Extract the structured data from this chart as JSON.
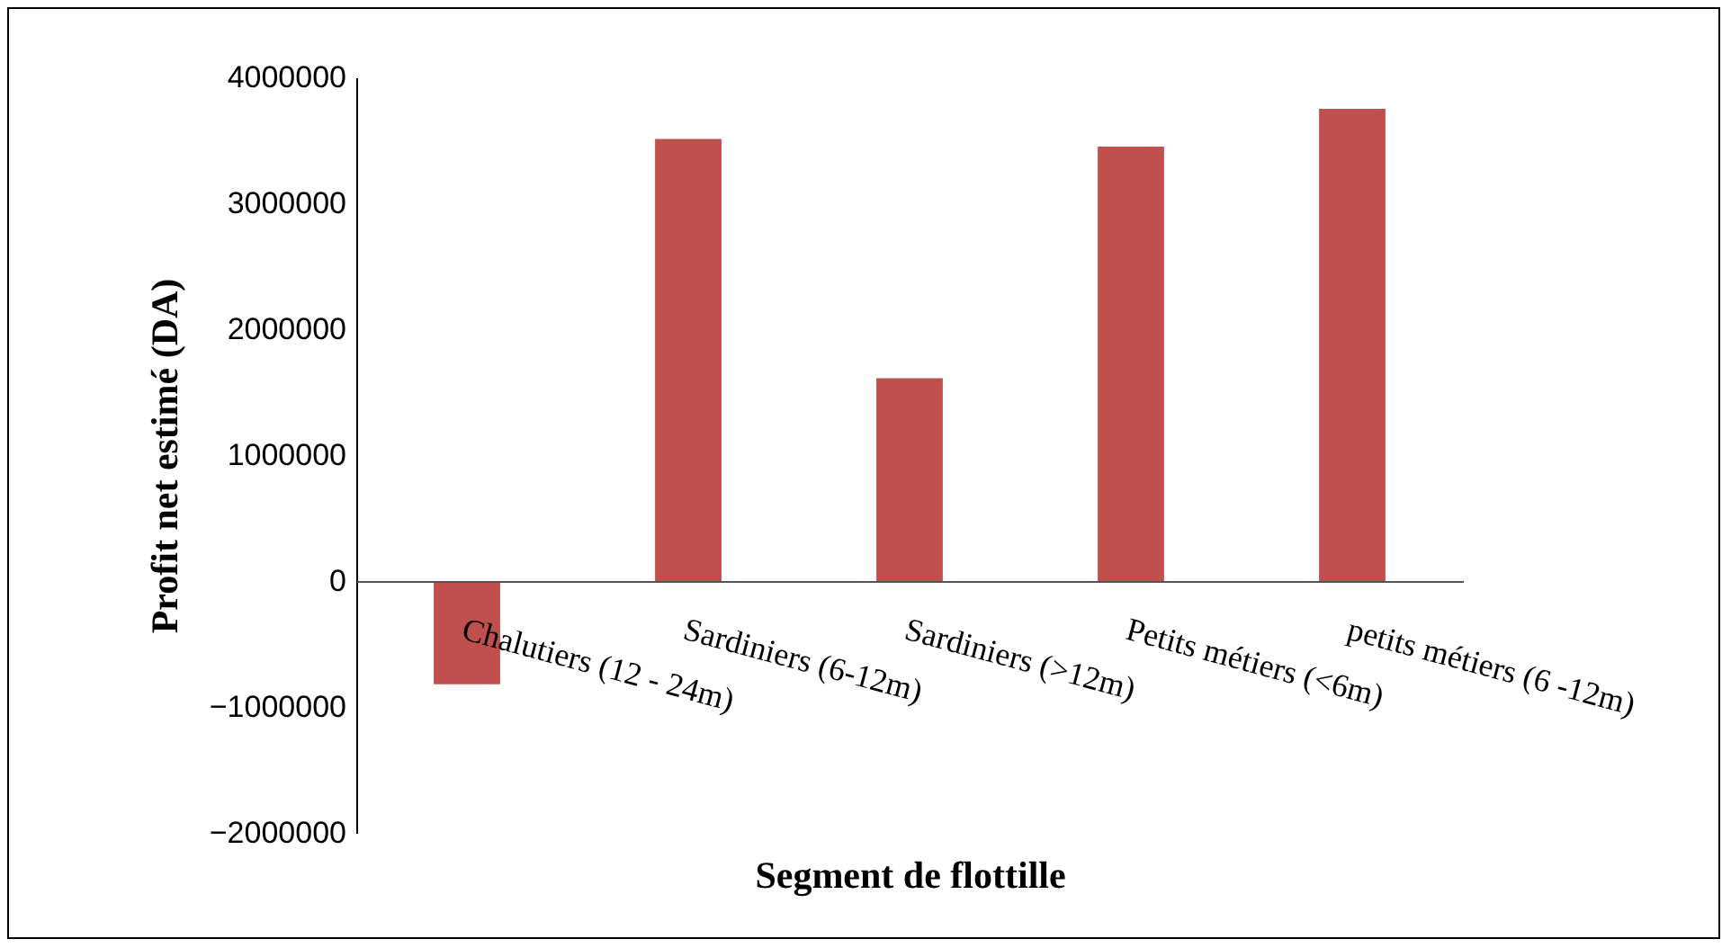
{
  "chart_data": {
    "type": "bar",
    "xlabel": "Segment de flottille",
    "ylabel": "Profit net estimé (DA)",
    "categories": [
      "Chalutiers (12 - 24m)",
      "Sardiniers (6-12m)",
      "Sardiniers (>12m)",
      "Petits métiers (<6m)",
      "petits métiers (6 -12m)"
    ],
    "values": [
      -820000,
      3510000,
      1610000,
      3450000,
      3750000
    ],
    "color": "#c0504d",
    "ylim": [
      -2000000,
      4000000
    ],
    "yticks": [
      -2000000,
      -1000000,
      0,
      1000000,
      2000000,
      3000000,
      4000000
    ],
    "grid": false
  }
}
